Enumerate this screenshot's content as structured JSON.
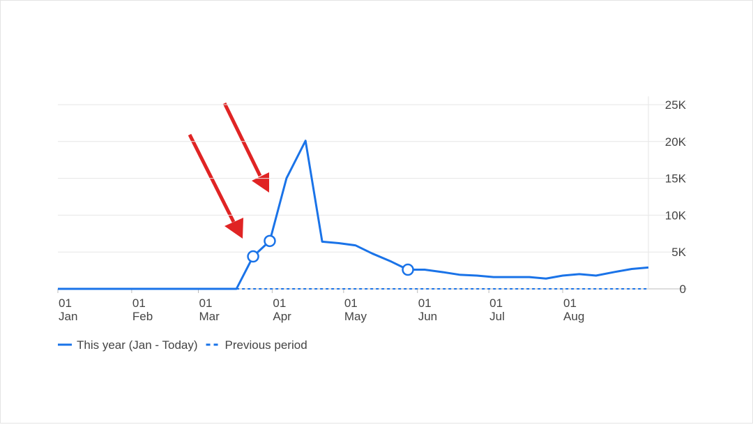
{
  "chart_data": {
    "type": "line",
    "series": [
      {
        "name": "This year (Jan - Today)",
        "color": "#1a73e8",
        "style": "solid",
        "x": [
          0,
          75,
          82,
          89,
          96,
          104,
          111,
          118,
          125,
          132,
          140,
          147,
          154,
          161,
          169,
          176,
          183,
          190,
          198,
          205,
          212,
          219,
          226,
          234,
          241,
          248
        ],
        "values": [
          0,
          0,
          4400,
          6500,
          15000,
          20100,
          6400,
          6200,
          5900,
          4800,
          3700,
          2600,
          2600,
          2300,
          1900,
          1800,
          1600,
          1600,
          1600,
          1400,
          1800,
          2000,
          1800,
          2300,
          2700,
          2900
        ],
        "highlighted_points": [
          2,
          3,
          11
        ]
      },
      {
        "name": "Previous period",
        "color": "#1a73e8",
        "style": "dashed",
        "x": [
          75,
          248
        ],
        "values": [
          0,
          0
        ]
      }
    ],
    "xlim": [
      0,
      248
    ],
    "xticks": [
      {
        "value": 0,
        "label": "01\nJan"
      },
      {
        "value": 31,
        "label": "01\nFeb"
      },
      {
        "value": 59,
        "label": "01\nMar"
      },
      {
        "value": 90,
        "label": "01\nApr"
      },
      {
        "value": 120,
        "label": "01\nMay"
      },
      {
        "value": 151,
        "label": "01\nJun"
      },
      {
        "value": 181,
        "label": "01\nJul"
      },
      {
        "value": 212,
        "label": "01\nAug"
      }
    ],
    "ylim": [
      0,
      25000
    ],
    "yticks": [
      0,
      {
        "value": 5000,
        "label": "5K"
      },
      {
        "value": 10000,
        "label": "10K"
      },
      {
        "value": 15000,
        "label": "15K"
      },
      {
        "value": 20000,
        "label": "20K"
      },
      {
        "value": 25000,
        "label": "25K"
      }
    ],
    "grid": true,
    "legend": "bottom-left"
  }
}
